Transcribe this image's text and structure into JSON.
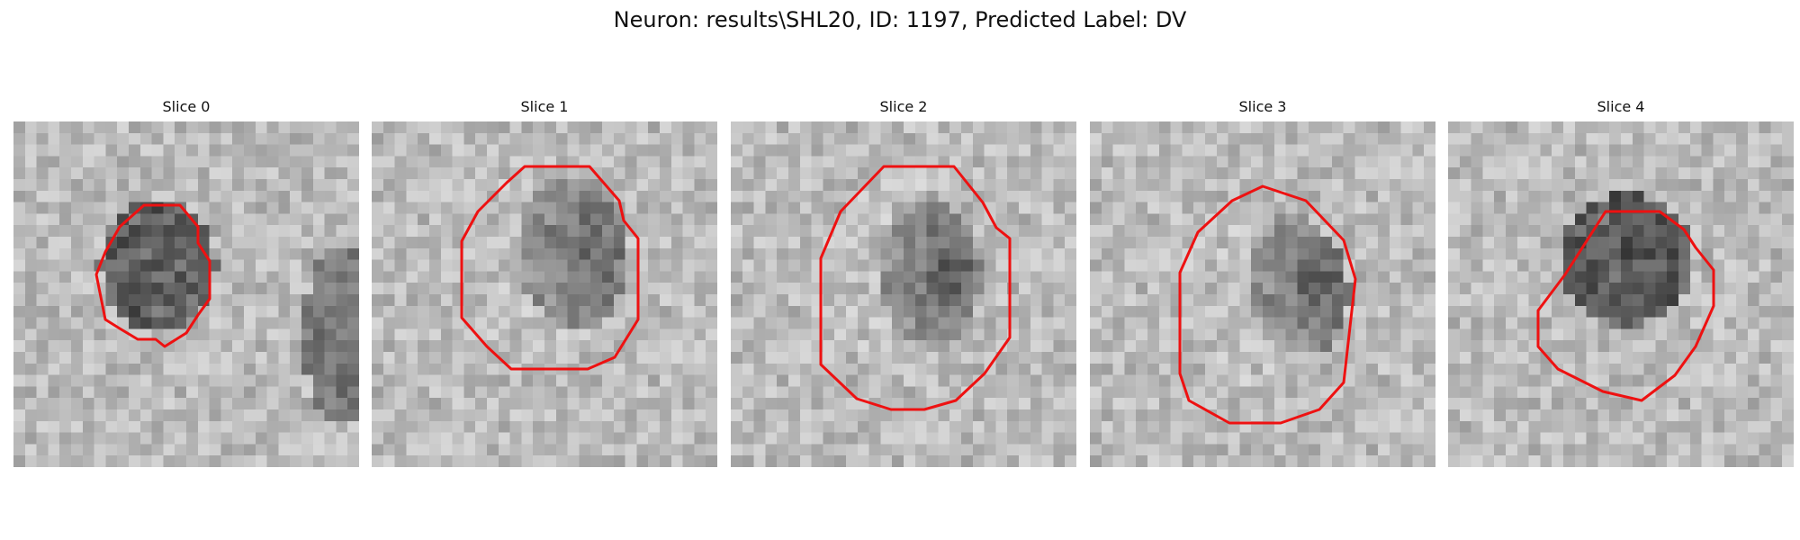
{
  "title": "Neuron: results\\SHL20, ID: 1197, Predicted Label: DV",
  "outline_color": "#ee1111",
  "panels": [
    {
      "label": "Slice 0"
    },
    {
      "label": "Slice 1"
    },
    {
      "label": "Slice 2"
    },
    {
      "label": "Slice 3"
    },
    {
      "label": "Slice 4"
    }
  ]
}
